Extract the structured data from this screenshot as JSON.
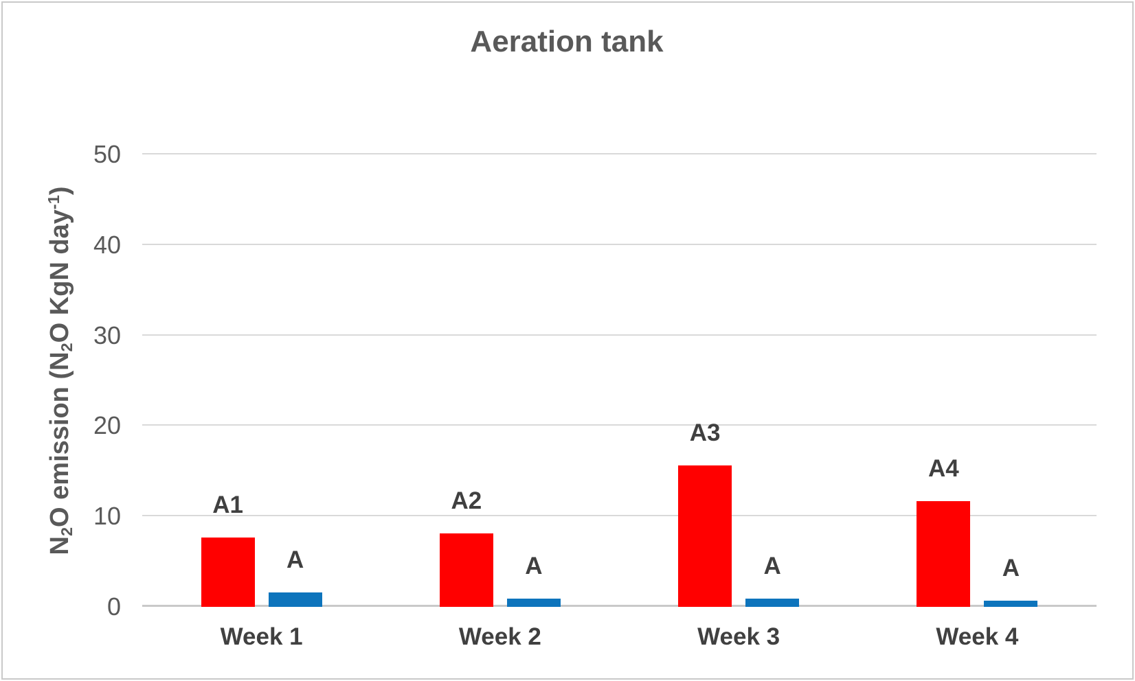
{
  "title": "Aeration tank",
  "colors": {
    "red_bar": "#FF0000",
    "blue_bar": "#0D74BC",
    "gridline": "#D9D9D9",
    "axis_line": "#C9C9C9",
    "title_text": "#595959",
    "tick_text": "#595959",
    "label_text": "#404040"
  },
  "chart_data": {
    "type": "bar",
    "title": "Aeration tank",
    "categories": [
      "Week 1",
      "Week 2",
      "Week 3",
      "Week 4"
    ],
    "series": [
      {
        "color": "#FF0000",
        "values": [
          7.7,
          8.1,
          15.6,
          11.7
        ],
        "point_labels": [
          "A1",
          "A2",
          "A3",
          "A4"
        ]
      },
      {
        "color": "#0D74BC",
        "values": [
          1.6,
          0.9,
          0.9,
          0.7
        ],
        "point_labels": [
          "A",
          "A",
          "A",
          "A"
        ]
      }
    ],
    "ylabel_plain": "N2O emission (N2O KgN day-1)",
    "ylabel_rich": [
      {
        "text": "N"
      },
      {
        "text": "2",
        "style": "sub"
      },
      {
        "text": "O emission (N"
      },
      {
        "text": "2",
        "style": "sub"
      },
      {
        "text": "O KgN day"
      },
      {
        "text": "-1",
        "style": "sup"
      },
      {
        "text": ")"
      }
    ],
    "xlabel": "",
    "yticks": [
      0,
      10,
      20,
      30,
      40,
      50
    ],
    "ylim": [
      0,
      50
    ],
    "grid": true,
    "legend": "none"
  }
}
